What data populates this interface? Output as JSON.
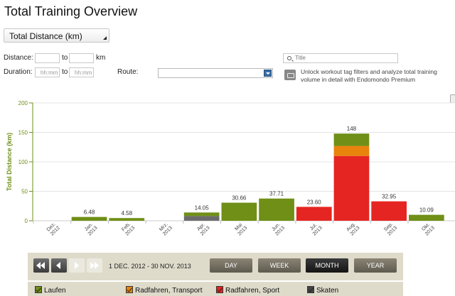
{
  "page": {
    "title": "Total Training Overview"
  },
  "filters": {
    "metric": "Total Distance (km)",
    "distance_label": "Distance:",
    "to_label": "to",
    "km_label": "km",
    "duration_label": "Duration:",
    "duration_from_placeholder": "hh:mm",
    "duration_to_placeholder": "hh:mm",
    "route_label": "Route:",
    "search_placeholder": "Title",
    "premium_text": "Unlock workout tag filters and analyze total training volume in detail with Endomondo Premium"
  },
  "controls": {
    "date_range": "1 DEC. 2012  -  30 NOV. 2013",
    "day": "DAY",
    "week": "WEEK",
    "month": "MONTH",
    "year": "YEAR",
    "active": "MONTH"
  },
  "legend": [
    {
      "label": "Laufen",
      "color": "#6f8f17"
    },
    {
      "label": "Radfahren, Transport",
      "color": "#e8830c"
    },
    {
      "label": "Radfahren, Sport",
      "color": "#e52521"
    },
    {
      "label": "Skaten",
      "color": "#444444"
    }
  ],
  "chart_data": {
    "type": "bar",
    "stacked": true,
    "ylabel": "Total Distance (km)",
    "ylim": [
      0,
      200
    ],
    "yticks": [
      0,
      50,
      100,
      150,
      200
    ],
    "grid": true,
    "categories": [
      {
        "m": "Dez.",
        "y": "2012"
      },
      {
        "m": "Jan.",
        "y": "2013"
      },
      {
        "m": "Feb.",
        "y": "2013"
      },
      {
        "m": "Mrz.",
        "y": "2013"
      },
      {
        "m": "Apr.",
        "y": "2013"
      },
      {
        "m": "Mai",
        "y": "2013"
      },
      {
        "m": "Jun.",
        "y": "2013"
      },
      {
        "m": "Jul.",
        "y": "2013"
      },
      {
        "m": "Aug.",
        "y": "2013"
      },
      {
        "m": "Sep.",
        "y": "2013"
      },
      {
        "m": "Okt.",
        "y": "2013"
      }
    ],
    "series": [
      {
        "name": "Skaten",
        "color": "#6b6b6b",
        "values": [
          0,
          0,
          0,
          0,
          8,
          0,
          0,
          0,
          0,
          0,
          0
        ]
      },
      {
        "name": "Radfahren, Sport",
        "color": "#e52521",
        "values": [
          0,
          0,
          0,
          0,
          0,
          0,
          0,
          23.6,
          110,
          32.95,
          0
        ]
      },
      {
        "name": "Radfahren, Transport",
        "color": "#e8830c",
        "values": [
          0,
          0,
          0,
          0,
          0,
          0,
          0,
          0,
          17,
          0,
          0
        ]
      },
      {
        "name": "Laufen",
        "color": "#6f8f17",
        "values": [
          0,
          6.48,
          4.58,
          0,
          6.05,
          30.66,
          37.71,
          0,
          21,
          0,
          10.09
        ]
      }
    ],
    "totals_labels": [
      "",
      "6.48",
      "4.58",
      "",
      "14.05",
      "30.66",
      "37.71",
      "23.60",
      "148",
      "32.95",
      "10.09"
    ]
  }
}
